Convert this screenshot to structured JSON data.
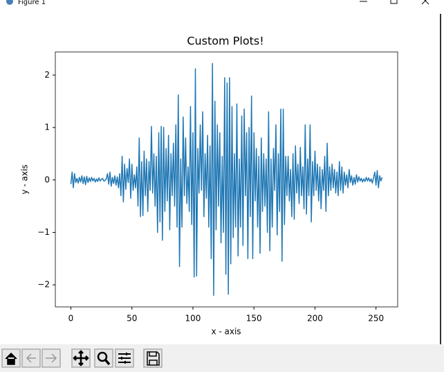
{
  "window": {
    "title": "Figure 1"
  },
  "chart_data": {
    "type": "line",
    "title": "Custom Plots!",
    "x_label": "x - axis",
    "y_label": "y - axis",
    "series": [
      {
        "color": "#1f77b4",
        "values": [
          -0.08,
          0.15,
          -0.15,
          0.12,
          -0.05,
          0.03,
          -0.06,
          0.05,
          -0.04,
          0.08,
          -0.07,
          0.06,
          -0.09,
          0.07,
          -0.05,
          0.04,
          -0.03,
          0.05,
          -0.02,
          0.03,
          -0.04,
          0.02,
          -0.03,
          0.04,
          -0.02,
          0.01,
          0.03,
          -0.02,
          -0.01,
          0.02,
          0.12,
          -0.08,
          0.15,
          -0.12,
          0.05,
          -0.07,
          0.08,
          -0.1,
          0.06,
          -0.15,
          0.12,
          -0.3,
          0.45,
          -0.42,
          0.3,
          -0.18,
          0.22,
          -0.05,
          0.4,
          -0.35,
          0.3,
          -0.2,
          0.1,
          -0.15,
          0.25,
          -0.5,
          0.8,
          -0.7,
          0.35,
          -0.68,
          0.55,
          -0.3,
          0.4,
          -0.6,
          0.35,
          -0.2,
          1.02,
          -0.25,
          0.5,
          -0.5,
          0.45,
          -1.0,
          0.9,
          -0.8,
          1.02,
          -1.15,
          1.0,
          -0.6,
          0.6,
          -0.4,
          0.85,
          -0.95,
          0.5,
          -0.3,
          0.7,
          -0.5,
          1.05,
          -0.9,
          1.62,
          -1.65,
          0.4,
          -0.9,
          1.2,
          -0.3,
          0.8,
          -0.45,
          0.25,
          -0.6,
          1.4,
          -0.85,
          0.9,
          -1.85,
          2.12,
          -1.83,
          0.6,
          -0.25,
          1.05,
          -0.2,
          1.3,
          -0.7,
          0.5,
          -0.35,
          0.85,
          -0.9,
          0.65,
          -1.5,
          2.22,
          -2.2,
          1.5,
          -0.95,
          1.05,
          -0.5,
          0.9,
          -1.2,
          0.45,
          -1.0,
          1.95,
          -1.8,
          1.85,
          -2.18,
          1.95,
          -1.6,
          1.4,
          -1.1,
          0.5,
          -0.9,
          1.45,
          -1.45,
          0.4,
          -0.9,
          1.22,
          -1.25,
          1.35,
          -0.3,
          0.9,
          -1.5,
          1.0,
          -0.7,
          1.6,
          -1.5,
          0.9,
          -0.4,
          0.6,
          -0.9,
          0.45,
          -1.4,
          0.8,
          -0.6,
          0.5,
          -0.5,
          0.4,
          -1.0,
          1.3,
          -1.35,
          0.4,
          -0.9,
          0.6,
          -0.2,
          1.05,
          -1.05,
          0.5,
          -0.6,
          1.35,
          -1.55,
          1.35,
          -0.85,
          0.45,
          -0.3,
          0.45,
          -0.4,
          0.2,
          -0.7,
          0.5,
          -0.75,
          0.65,
          -0.25,
          0.3,
          -0.45,
          0.62,
          -0.3,
          0.25,
          -0.55,
          1.05,
          -0.65,
          0.4,
          -0.3,
          1.05,
          -0.8,
          0.35,
          -0.3,
          0.55,
          -0.2,
          0.3,
          -0.4,
          0.25,
          -0.55,
          0.2,
          -0.2,
          0.45,
          -0.6,
          0.7,
          -0.3,
          0.25,
          -0.2,
          0.3,
          -0.15,
          0.2,
          -0.25,
          0.15,
          -0.3,
          0.35,
          -0.2,
          0.25,
          -0.25,
          0.15,
          -0.1,
          0.1,
          -0.15,
          0.2,
          -0.05,
          0.08,
          -0.1,
          0.05,
          -0.08,
          0.1,
          -0.04,
          0.06,
          -0.02,
          0.03,
          -0.04,
          0.02,
          -0.03,
          0.05,
          -0.02,
          0.04,
          -0.03,
          0.02,
          -0.06,
          0.04,
          0.15,
          -0.1,
          0.18,
          -0.15,
          0.08,
          -0.02,
          0.05
        ]
      }
    ],
    "xlim": [
      -12.75,
      267.75
    ],
    "xticks": [
      0,
      50,
      100,
      150,
      200,
      250
    ],
    "ylim": [
      -2.42,
      2.44
    ],
    "yticks": [
      {
        "value": -2,
        "label": "−2"
      },
      {
        "value": -1,
        "label": "−1"
      },
      0,
      1,
      2
    ]
  }
}
